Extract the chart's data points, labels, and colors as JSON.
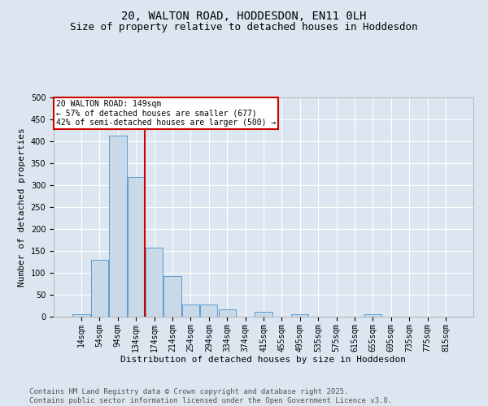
{
  "title_line1": "20, WALTON ROAD, HODDESDON, EN11 0LH",
  "title_line2": "Size of property relative to detached houses in Hoddesdon",
  "xlabel": "Distribution of detached houses by size in Hoddesdon",
  "ylabel": "Number of detached properties",
  "bin_labels": [
    "14sqm",
    "54sqm",
    "94sqm",
    "134sqm",
    "174sqm",
    "214sqm",
    "254sqm",
    "294sqm",
    "334sqm",
    "374sqm",
    "415sqm",
    "455sqm",
    "495sqm",
    "535sqm",
    "575sqm",
    "615sqm",
    "655sqm",
    "695sqm",
    "735sqm",
    "775sqm",
    "815sqm"
  ],
  "bar_values": [
    5,
    130,
    413,
    318,
    157,
    93,
    28,
    28,
    16,
    0,
    12,
    0,
    5,
    0,
    0,
    0,
    5,
    0,
    0,
    0,
    0
  ],
  "bar_color": "#c9d9e8",
  "bar_edge_color": "#5b9bd5",
  "vline_x": 3,
  "vline_color": "#cc0000",
  "annotation_text": "20 WALTON ROAD: 149sqm\n← 57% of detached houses are smaller (677)\n42% of semi-detached houses are larger (500) →",
  "annotation_box_color": "#ffffff",
  "annotation_box_edge": "#cc0000",
  "ylim": [
    0,
    500
  ],
  "yticks": [
    0,
    50,
    100,
    150,
    200,
    250,
    300,
    350,
    400,
    450,
    500
  ],
  "bg_color": "#dce6f0",
  "plot_bg_color": "#dce6f0",
  "footer_text": "Contains HM Land Registry data © Crown copyright and database right 2025.\nContains public sector information licensed under the Open Government Licence v3.0.",
  "title_fontsize": 10,
  "subtitle_fontsize": 9,
  "tick_fontsize": 7,
  "label_fontsize": 8,
  "footer_fontsize": 6.5,
  "ann_fontsize": 7
}
